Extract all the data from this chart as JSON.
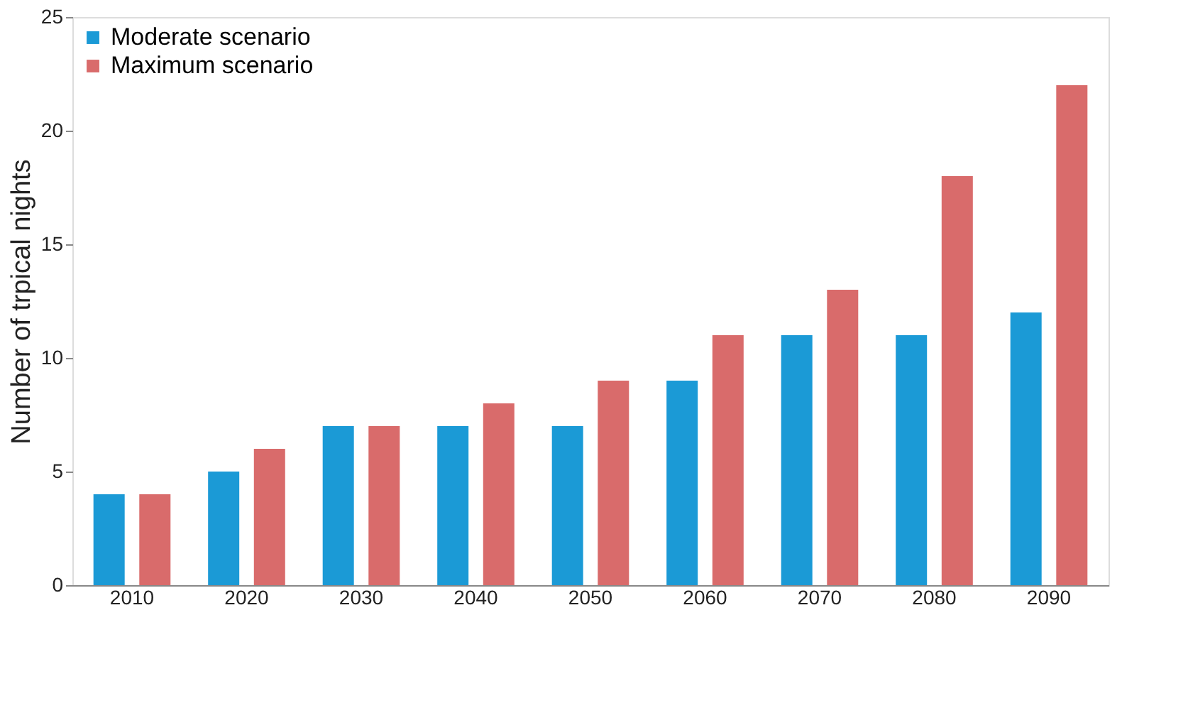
{
  "chart_data": {
    "type": "bar",
    "ylabel": "Number of trpical nights",
    "categories": [
      "2010",
      "2020",
      "2030",
      "2040",
      "2050",
      "2060",
      "2070",
      "2080",
      "2090"
    ],
    "series": [
      {
        "name": "Moderate scenario",
        "color": "#1b9ad6",
        "values": [
          4,
          5,
          7,
          7,
          7,
          9,
          11,
          11,
          12
        ]
      },
      {
        "name": "Maximum scenario",
        "color": "#d96b6b",
        "values": [
          4,
          6,
          7,
          8,
          9,
          11,
          13,
          18,
          22
        ]
      }
    ],
    "ylim": [
      0,
      25
    ],
    "yticks": [
      0,
      5,
      10,
      15,
      20,
      25
    ],
    "grid": false,
    "legend": "top left"
  }
}
